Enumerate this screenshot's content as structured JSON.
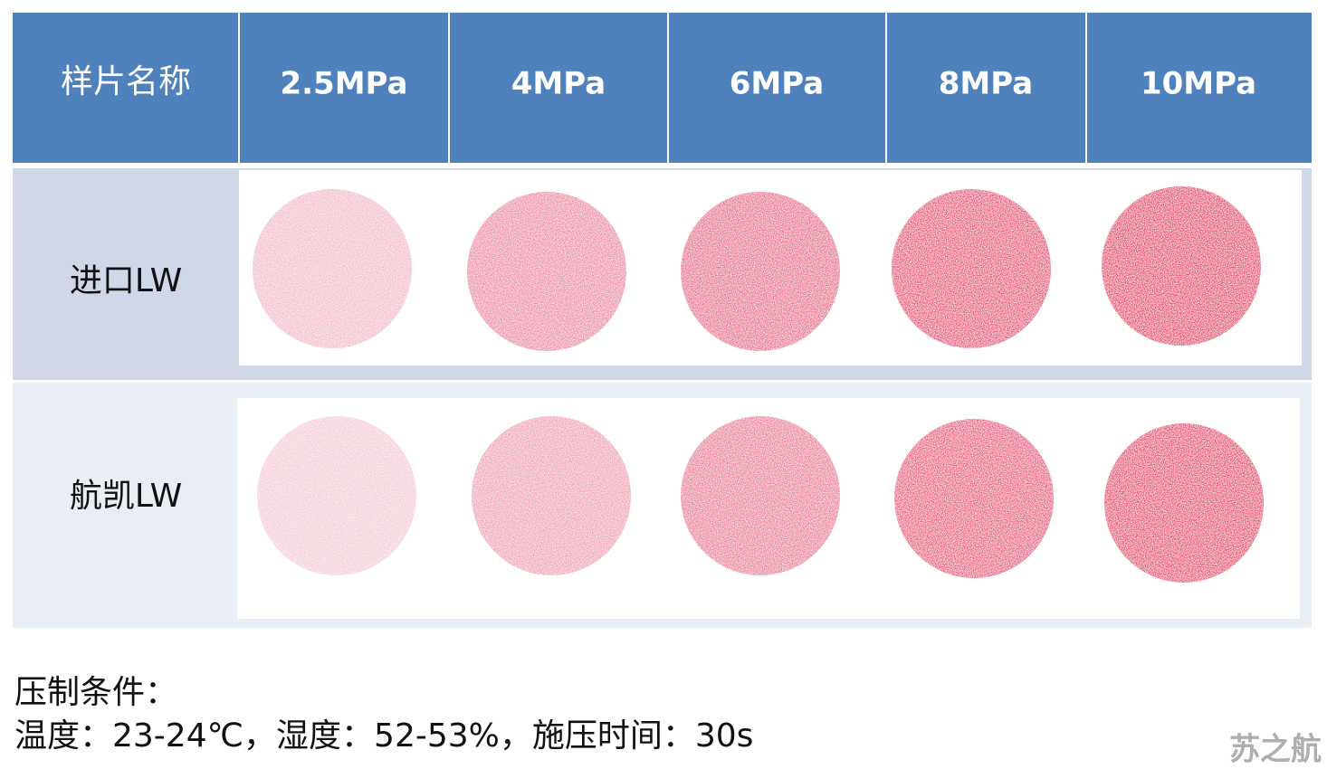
{
  "table": {
    "header": [
      "样片名称",
      "2.5MPa",
      "4MPa",
      "6MPa",
      "8MPa",
      "10MPa"
    ],
    "rows": [
      "进口LW",
      "航凯LW"
    ]
  },
  "notes": {
    "title": "压制条件：",
    "conditions": "温度：23-24℃，湿度：52-53%，施压时间：30s"
  },
  "watermark": "苏之航"
}
